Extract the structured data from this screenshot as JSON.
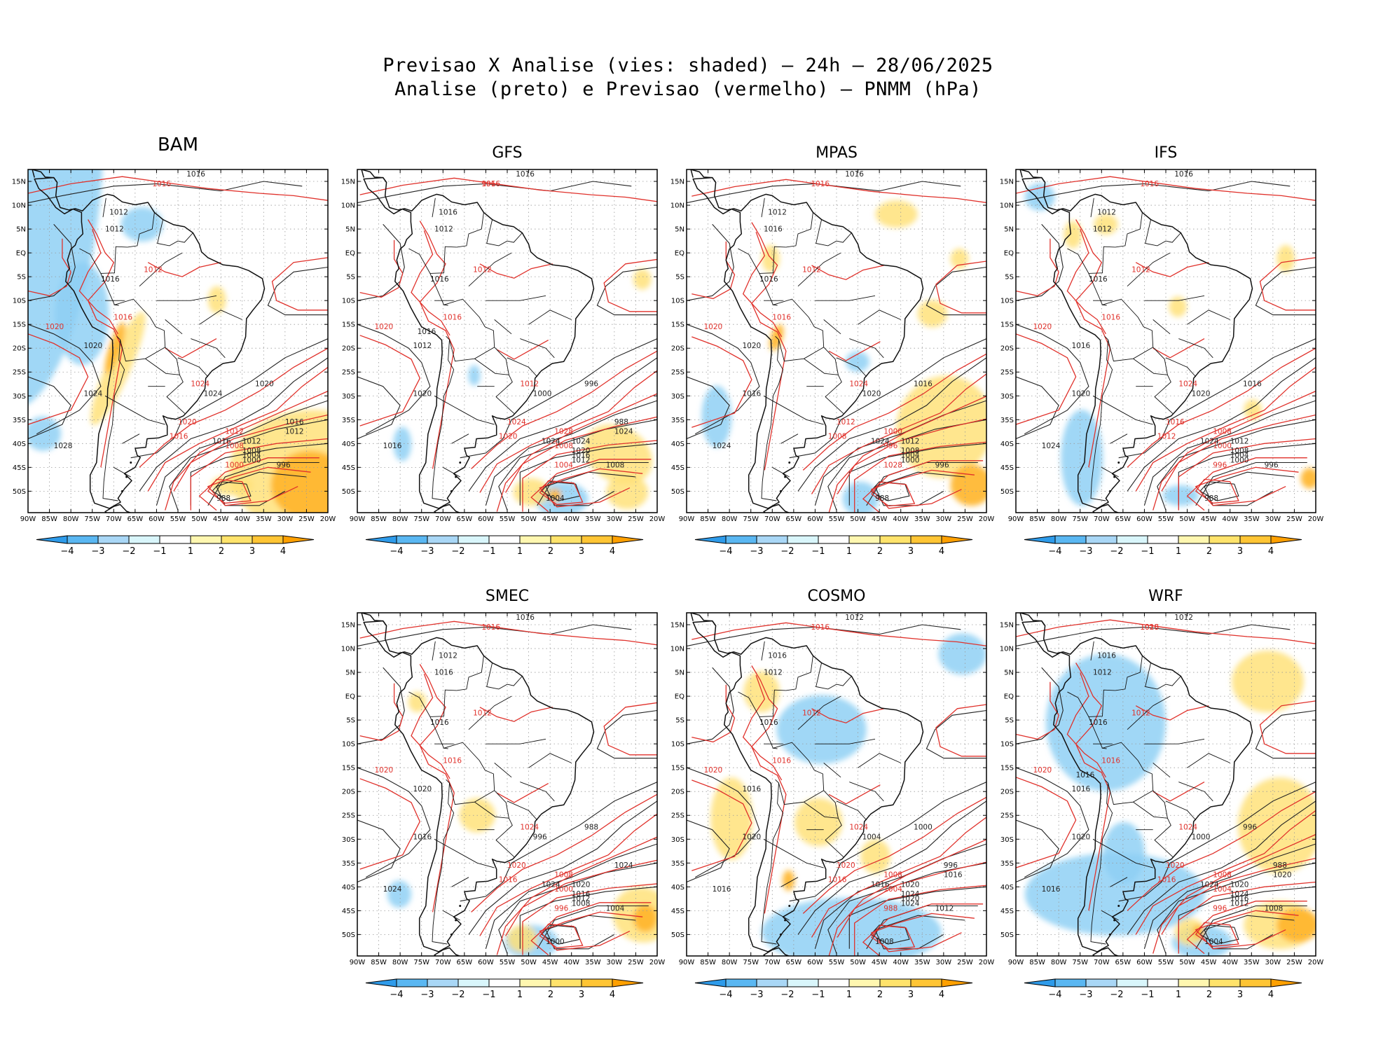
{
  "header": {
    "line1": "Previsao X Analise (vies: shaded) — 24h — 28/06/2025",
    "line2": "Analise (preto) e Previsao (vermelho) — PNMM (hPa)"
  },
  "axes": {
    "lat_labels": [
      "15N",
      "10N",
      "5N",
      "EQ",
      "5S",
      "10S",
      "15S",
      "20S",
      "25S",
      "30S",
      "35S",
      "40S",
      "45S",
      "50S"
    ],
    "lon_labels": [
      "90W",
      "85W",
      "80W",
      "75W",
      "70W",
      "65W",
      "60W",
      "55W",
      "50W",
      "45W",
      "40W",
      "35W",
      "30W",
      "25W",
      "20W"
    ]
  },
  "colorbar": {
    "labels": [
      "−4",
      "−3",
      "−2",
      "−1",
      "1",
      "2",
      "3",
      "4"
    ],
    "colors": [
      "#2e9bea",
      "#5ab7f2",
      "#a9d7f6",
      "#d9f6fb",
      "#ffffff",
      "#fff7b0",
      "#ffe36b",
      "#ffc534",
      "#ffa000"
    ]
  },
  "colors": {
    "analysis": "#222222",
    "forecast": "#e0312b",
    "negative_bias": "#8fd0f5",
    "positive_bias": "#ffe27a"
  },
  "panels": [
    {
      "id": "bam",
      "name": "BAM",
      "blue": [
        [
          0.02,
          0.08,
          0.22,
          0.62,
          0.1
        ],
        [
          0.18,
          0.42,
          0.09,
          0.15,
          0.0
        ],
        [
          0.05,
          0.77,
          0.06,
          0.05,
          0.0
        ],
        [
          0.38,
          0.16,
          0.07,
          0.05,
          0.0
        ]
      ],
      "yellow": [
        [
          0.95,
          0.88,
          0.28,
          0.18,
          0.0
        ],
        [
          0.3,
          0.58,
          0.04,
          0.18,
          0.4
        ],
        [
          0.63,
          0.38,
          0.03,
          0.04,
          0.0
        ],
        [
          0.68,
          0.92,
          0.07,
          0.03,
          0.0
        ],
        [
          0.29,
          0.54,
          0.02,
          0.05,
          0.3
        ]
      ],
      "orange": [
        [
          0.94,
          0.92,
          0.13,
          0.1,
          0.0
        ],
        [
          0.29,
          0.52,
          0.02,
          0.08,
          0.3
        ]
      ],
      "labelsB": [
        "1016",
        "1012",
        "1012",
        "1016",
        "1020",
        "1024",
        "1028",
        "1016",
        "1012",
        "1008",
        "1004",
        "1000",
        "996",
        "988",
        "1024",
        "1020",
        "1016",
        "1012"
      ],
      "labelsR": [
        "1016",
        "1012",
        "1016",
        "1020",
        "1024",
        "1020",
        "1016",
        "1012",
        "1008",
        "1000"
      ]
    },
    {
      "id": "gfs",
      "name": "GFS",
      "blue": [
        [
          0.68,
          0.96,
          0.09,
          0.05,
          0.0
        ],
        [
          0.15,
          0.8,
          0.03,
          0.05,
          0.0
        ],
        [
          0.39,
          0.6,
          0.02,
          0.03,
          0.0
        ]
      ],
      "yellow": [
        [
          0.87,
          0.83,
          0.12,
          0.08,
          0.5
        ],
        [
          0.9,
          0.94,
          0.07,
          0.05,
          0.0
        ],
        [
          0.58,
          0.94,
          0.06,
          0.04,
          0.0
        ],
        [
          0.95,
          0.32,
          0.03,
          0.03,
          0.0
        ]
      ],
      "orange": [
        [
          0.66,
          0.95,
          0.02,
          0.02,
          0.0
        ]
      ],
      "labelsB": [
        "1016",
        "1016",
        "1012",
        "1016",
        "1012",
        "1020",
        "1016",
        "1024",
        "1024",
        "1020",
        "1016",
        "1012",
        "1008",
        "1004",
        "1000",
        "996",
        "988",
        "1024",
        "1016"
      ],
      "labelsR": [
        "1016",
        "1012",
        "1016",
        "1020",
        "1012",
        "1024",
        "1020",
        "1028",
        "1008",
        "1004",
        "996"
      ]
    },
    {
      "id": "mpas",
      "name": "MPAS",
      "blue": [
        [
          0.1,
          0.72,
          0.05,
          0.09,
          0.0
        ],
        [
          0.58,
          0.96,
          0.06,
          0.05,
          0.0
        ],
        [
          0.57,
          0.56,
          0.04,
          0.03,
          0.0
        ]
      ],
      "yellow": [
        [
          0.86,
          0.75,
          0.16,
          0.15,
          0.3
        ],
        [
          0.82,
          0.42,
          0.05,
          0.04,
          0.0
        ],
        [
          0.7,
          0.13,
          0.07,
          0.04,
          0.0
        ],
        [
          0.91,
          0.26,
          0.03,
          0.03,
          0.0
        ],
        [
          0.28,
          0.26,
          0.03,
          0.04,
          0.0
        ]
      ],
      "orange": [
        [
          0.95,
          0.92,
          0.07,
          0.06,
          0.0
        ],
        [
          0.3,
          0.49,
          0.02,
          0.04,
          0.3
        ]
      ],
      "labelsB": [
        "1016",
        "1012",
        "1016",
        "1016",
        "1020",
        "1016",
        "1024",
        "1024",
        "1012",
        "1008",
        "1004",
        "1000",
        "996",
        "988",
        "1020",
        "1016"
      ],
      "labelsR": [
        "1016",
        "1012",
        "1016",
        "1020",
        "1024",
        "1012",
        "1008",
        "1000",
        "996",
        "1028"
      ]
    },
    {
      "id": "ifs",
      "name": "IFS",
      "blue": [
        [
          0.22,
          0.84,
          0.07,
          0.14,
          0.0
        ],
        [
          0.08,
          0.08,
          0.05,
          0.04,
          0.0
        ],
        [
          0.55,
          0.95,
          0.06,
          0.03,
          0.0
        ]
      ],
      "yellow": [
        [
          0.79,
          0.7,
          0.03,
          0.03,
          0.0
        ],
        [
          0.3,
          0.16,
          0.04,
          0.03,
          0.0
        ],
        [
          0.54,
          0.4,
          0.03,
          0.03,
          0.0
        ],
        [
          0.9,
          0.26,
          0.03,
          0.04,
          0.0
        ],
        [
          0.19,
          0.19,
          0.03,
          0.04,
          0.0
        ]
      ],
      "orange": [
        [
          0.98,
          0.9,
          0.03,
          0.03,
          0.0
        ]
      ],
      "labelsB": [
        "1016",
        "1012",
        "1012",
        "1016",
        "1016",
        "1020",
        "1024",
        "1024",
        "1012",
        "1008",
        "1004",
        "1000",
        "996",
        "988",
        "1020",
        "1016"
      ],
      "labelsR": [
        "1016",
        "1012",
        "1016",
        "1020",
        "1024",
        "1016",
        "1012",
        "1008",
        "1000",
        "996"
      ]
    },
    {
      "id": "smec",
      "name": "SMEC",
      "blue": [
        [
          0.58,
          0.96,
          0.09,
          0.05,
          0.0
        ],
        [
          0.14,
          0.82,
          0.04,
          0.04,
          0.0
        ]
      ],
      "yellow": [
        [
          0.95,
          0.88,
          0.1,
          0.08,
          0.3
        ],
        [
          0.4,
          0.59,
          0.06,
          0.05,
          0.0
        ],
        [
          0.2,
          0.26,
          0.03,
          0.03,
          0.0
        ],
        [
          0.55,
          0.95,
          0.05,
          0.04,
          0.0
        ]
      ],
      "orange": [
        [
          0.96,
          0.89,
          0.04,
          0.04,
          0.0
        ]
      ],
      "labelsB": [
        "1016",
        "1012",
        "1016",
        "1016",
        "1020",
        "1016",
        "1024",
        "1024",
        "1020",
        "1016",
        "1012",
        "1008",
        "1004",
        "1000",
        "996",
        "988",
        "1024"
      ],
      "labelsR": [
        "1016",
        "1012",
        "1016",
        "1020",
        "1024",
        "1020",
        "1016",
        "1008",
        "1000",
        "996"
      ]
    },
    {
      "id": "cosmo",
      "name": "COSMO",
      "blue": [
        [
          0.55,
          0.93,
          0.3,
          0.1,
          0.0
        ],
        [
          0.45,
          0.34,
          0.15,
          0.1,
          0.0
        ],
        [
          0.92,
          0.12,
          0.08,
          0.06,
          0.0
        ]
      ],
      "yellow": [
        [
          0.25,
          0.23,
          0.06,
          0.06,
          0.0
        ],
        [
          0.15,
          0.6,
          0.07,
          0.12,
          0.0
        ],
        [
          0.44,
          0.61,
          0.08,
          0.07,
          0.0
        ],
        [
          0.63,
          0.71,
          0.05,
          0.05,
          0.0
        ]
      ],
      "orange": [
        [
          0.34,
          0.78,
          0.02,
          0.03,
          0.0
        ]
      ],
      "labelsB": [
        "1012",
        "1016",
        "1012",
        "1016",
        "1016",
        "1020",
        "1016",
        "1016",
        "1020",
        "1024",
        "1020",
        "1024",
        "1012",
        "1008",
        "1004",
        "1000",
        "996",
        "1016"
      ],
      "labelsR": [
        "1016",
        "1012",
        "1016",
        "1020",
        "1024",
        "1020",
        "1016",
        "1008",
        "1004",
        "988"
      ]
    },
    {
      "id": "wrf",
      "name": "WRF",
      "blue": [
        [
          0.33,
          0.82,
          0.3,
          0.12,
          0.0
        ],
        [
          0.3,
          0.32,
          0.2,
          0.2,
          0.0
        ],
        [
          0.36,
          0.7,
          0.07,
          0.09,
          0.0
        ],
        [
          0.62,
          0.96,
          0.1,
          0.05,
          0.0
        ]
      ],
      "yellow": [
        [
          0.88,
          0.62,
          0.14,
          0.14,
          0.0
        ],
        [
          0.84,
          0.2,
          0.12,
          0.09,
          0.0
        ],
        [
          0.88,
          0.91,
          0.12,
          0.07,
          0.0
        ],
        [
          0.58,
          0.93,
          0.05,
          0.04,
          0.0
        ]
      ],
      "orange": [
        [
          0.94,
          0.91,
          0.07,
          0.05,
          0.0
        ],
        [
          0.61,
          0.93,
          0.02,
          0.02,
          0.0
        ]
      ],
      "labelsB": [
        "1012",
        "1016",
        "1012",
        "1016",
        "1016",
        "1020",
        "1016",
        "1024",
        "1020",
        "1024",
        "1016",
        "1012",
        "1008",
        "1004",
        "1000",
        "996",
        "988",
        "1020",
        "1016"
      ],
      "labelsR": [
        "1016",
        "1012",
        "1016",
        "1020",
        "1024",
        "1020",
        "1016",
        "1008",
        "1004",
        "996",
        "1028"
      ]
    }
  ]
}
